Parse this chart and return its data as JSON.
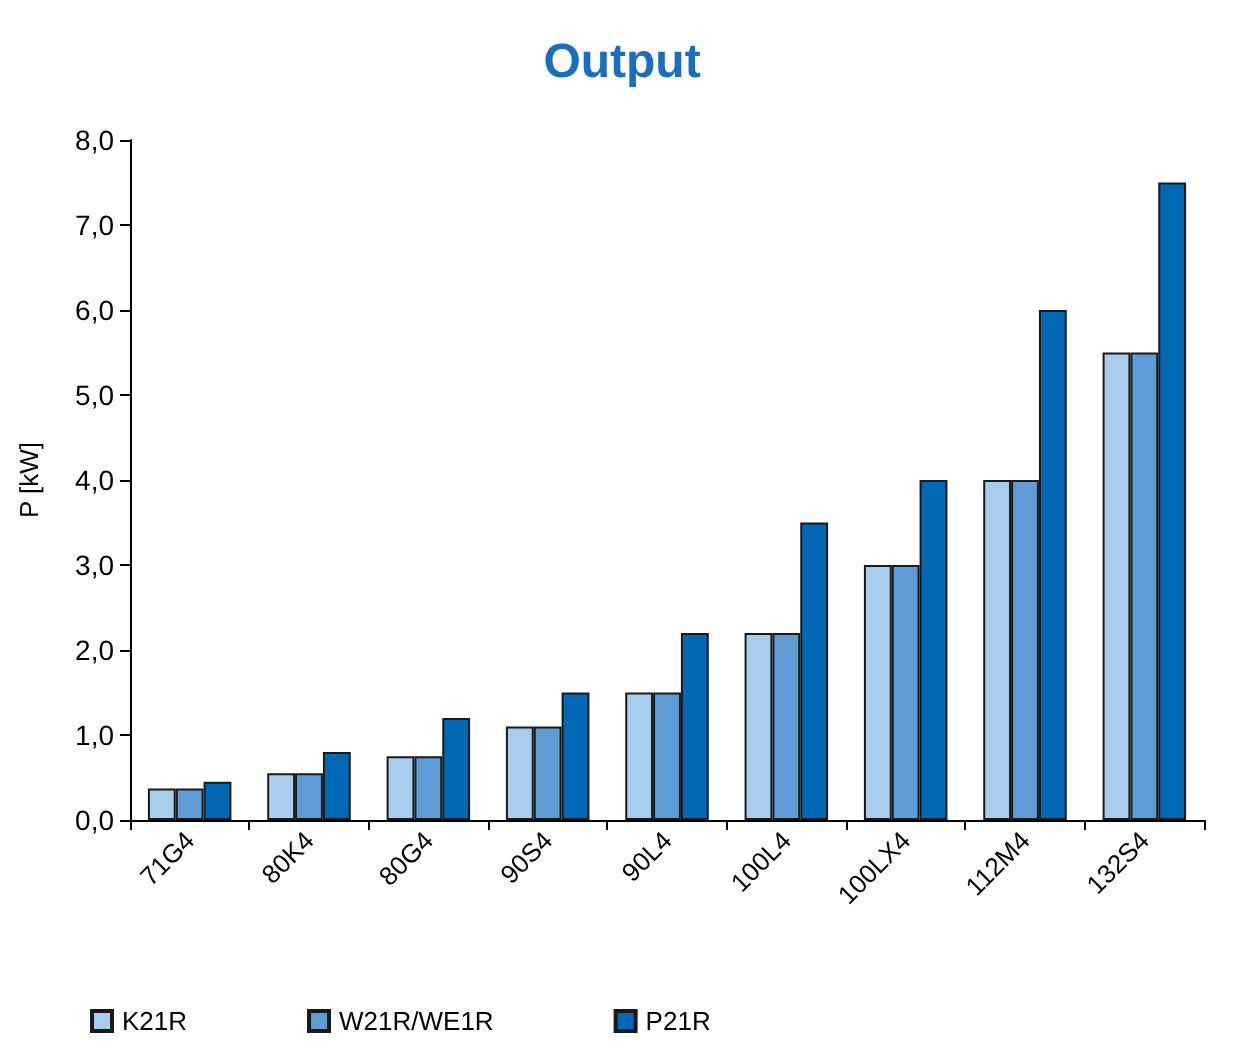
{
  "chart_data": {
    "type": "bar",
    "title": "Output",
    "ylabel": "P [kW]",
    "categories": [
      "71G4",
      "80K4",
      "80G4",
      "90S4",
      "90L4",
      "100L4",
      "100LX4",
      "112M4",
      "132S4"
    ],
    "series": [
      {
        "name": "K21R",
        "color": "#a9cdec",
        "values": [
          0.37,
          0.55,
          0.75,
          1.1,
          1.5,
          2.2,
          3.0,
          4.0,
          5.5
        ]
      },
      {
        "name": "W21R/WE1R",
        "color": "#5f9bd5",
        "values": [
          0.37,
          0.55,
          0.75,
          1.1,
          1.5,
          2.2,
          3.0,
          4.0,
          5.5
        ]
      },
      {
        "name": "P21R",
        "color": "#0068b4",
        "values": [
          0.45,
          0.8,
          1.2,
          1.5,
          2.2,
          3.5,
          4.0,
          6.0,
          7.5
        ]
      }
    ],
    "ylim": [
      0,
      8
    ],
    "yticks": [
      {
        "value": 0,
        "label": "0,0"
      },
      {
        "value": 1,
        "label": "1,0"
      },
      {
        "value": 2,
        "label": "2,0"
      },
      {
        "value": 3,
        "label": "3,0"
      },
      {
        "value": 4,
        "label": "4,0"
      },
      {
        "value": 5,
        "label": "5,0"
      },
      {
        "value": 6,
        "label": "6,0"
      },
      {
        "value": 7,
        "label": "7,0"
      },
      {
        "value": 8,
        "label": "8,0"
      }
    ],
    "grid": false,
    "legend": "bottom"
  }
}
